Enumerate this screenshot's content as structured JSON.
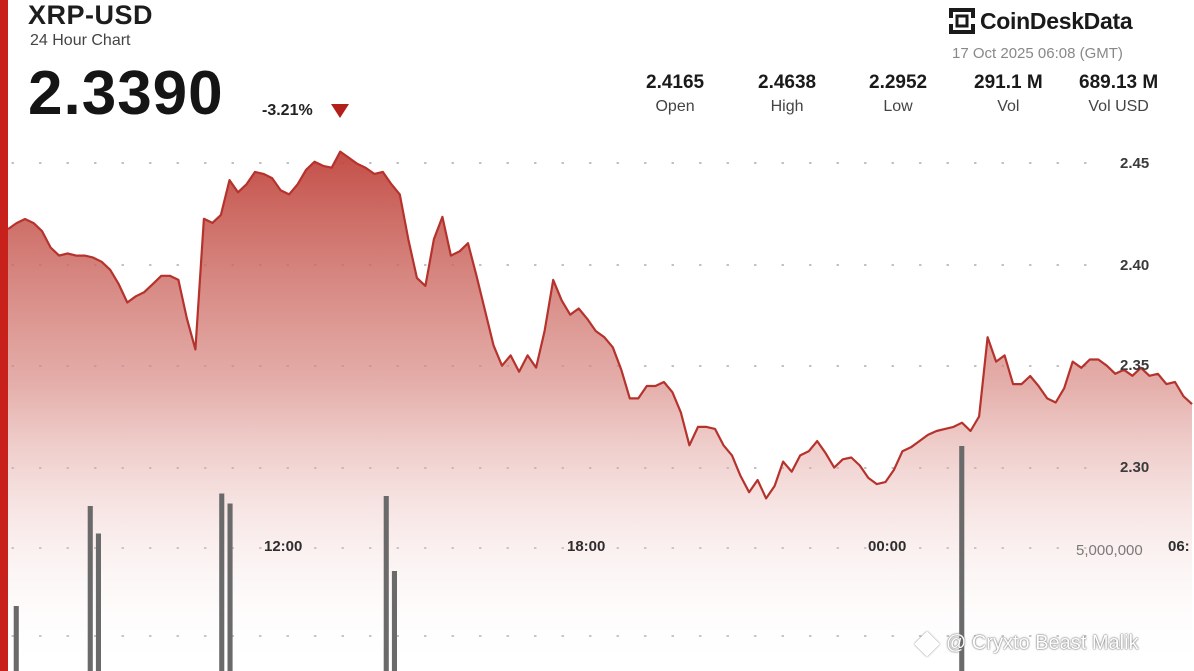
{
  "header": {
    "title": "XRP-USD",
    "subtitle": "24 Hour Chart",
    "price": "2.3390",
    "change": "-3.21%",
    "change_color": "#b3201b"
  },
  "brand": {
    "name": "CoinDeskData",
    "icon": "coindesk-logo-icon",
    "timestamp": "17 Oct 2025 06:08 (GMT)"
  },
  "stats": [
    {
      "value": "2.4165",
      "label": "Open"
    },
    {
      "value": "2.4638",
      "label": "High"
    },
    {
      "value": "2.2952",
      "label": "Low"
    },
    {
      "value": "291.1 M",
      "label": "Vol"
    },
    {
      "value": "689.13 M",
      "label": "Vol USD"
    }
  ],
  "watermark": "@ Cryxto Beast Malik",
  "chart_data": {
    "type": "area",
    "title": "XRP-USD",
    "xlabel": "",
    "ylabel": "",
    "ylim": [
      2.2795,
      2.4779
    ],
    "y_ticks": [
      {
        "value": 2.45,
        "label": "2.45"
      },
      {
        "value": 2.4,
        "label": "2.40"
      },
      {
        "value": 2.35,
        "label": "2.35"
      },
      {
        "value": 2.3,
        "label": "2.30"
      }
    ],
    "x_ticks": [
      "12:00",
      "18:00",
      "00:00",
      "06:"
    ],
    "grid": true,
    "line_color": "#c0392b",
    "fill_color": "#c9504a",
    "price_series": [
      2.4251,
      2.428,
      2.43,
      2.428,
      2.4241,
      2.4162,
      2.4123,
      2.4133,
      2.4123,
      2.4123,
      2.4113,
      2.4093,
      2.4054,
      2.3985,
      2.3896,
      2.3926,
      2.3946,
      2.3985,
      2.4025,
      2.4025,
      2.4005,
      2.3818,
      2.3669,
      2.4301,
      2.4281,
      2.432,
      2.4488,
      2.4429,
      2.4468,
      2.4528,
      2.4518,
      2.4498,
      2.4439,
      2.4419,
      2.4468,
      2.4538,
      2.4577,
      2.4557,
      2.4548,
      2.4626,
      2.4597,
      2.4567,
      2.4547,
      2.4518,
      2.4528,
      2.4469,
      2.4419,
      2.4202,
      2.4015,
      2.3976,
      2.4202,
      2.431,
      2.4123,
      2.4143,
      2.4183,
      2.4025,
      2.3857,
      2.3689,
      2.359,
      2.364,
      2.3561,
      2.364,
      2.3581,
      2.3758,
      2.4005,
      2.3906,
      2.3837,
      2.3867,
      2.3817,
      2.3758,
      2.3728,
      2.3679,
      2.357,
      2.3432,
      2.3432,
      2.3492,
      2.3492,
      2.3511,
      2.3462,
      2.3363,
      2.3205,
      2.3294,
      2.3294,
      2.3284,
      2.3205,
      2.3156,
      2.3057,
      2.2978,
      2.3037,
      2.2948,
      2.3008,
      2.3126,
      2.3077,
      2.3156,
      2.3176,
      2.3225,
      2.3166,
      2.3097,
      2.3137,
      2.3146,
      2.3107,
      2.3047,
      2.3017,
      2.3027,
      2.3086,
      2.3176,
      2.3195,
      2.3225,
      2.3255,
      2.3274,
      2.3284,
      2.3294,
      2.3314,
      2.3274,
      2.3344,
      2.3728,
      2.361,
      2.364,
      2.3501,
      2.3501,
      2.354,
      2.3491,
      2.3432,
      2.3412,
      2.3481,
      2.361,
      2.358,
      2.362,
      2.362,
      2.359,
      2.3551,
      2.357,
      2.3541,
      2.358,
      2.3541,
      2.3551,
      2.3501,
      2.3511,
      2.3442,
      2.3404
    ],
    "volume_series": [
      0,
      2600000,
      0,
      0,
      0,
      0,
      0,
      0,
      0,
      0,
      6600000,
      5500000,
      0,
      0,
      0,
      0,
      0,
      0,
      0,
      0,
      0,
      0,
      0,
      0,
      0,
      0,
      7100000,
      6700000,
      0,
      0,
      0,
      0,
      0,
      0,
      0,
      0,
      0,
      0,
      0,
      0,
      0,
      0,
      0,
      0,
      0,
      0,
      7000000,
      4000000,
      0,
      0,
      0,
      0,
      0,
      0,
      0,
      0,
      0,
      0,
      0,
      0,
      0,
      0,
      0,
      0,
      0,
      0,
      0,
      0,
      0,
      0,
      0,
      0,
      0,
      0,
      0,
      0,
      0,
      0,
      0,
      0,
      0,
      0,
      0,
      0,
      0,
      0,
      0,
      0,
      0,
      0,
      0,
      0,
      0,
      0,
      0,
      0,
      0,
      0,
      0,
      0,
      0,
      0,
      0,
      0,
      0,
      0,
      0,
      0,
      0,
      0,
      0,
      0,
      0,
      0,
      0,
      0,
      9000000,
      0,
      0,
      0,
      0,
      0,
      0,
      0,
      0,
      0,
      0,
      0,
      0,
      0,
      0,
      0,
      0,
      0,
      0,
      0,
      0,
      0,
      0,
      0,
      0,
      0,
      0,
      0,
      0
    ],
    "volume_ticks": [
      {
        "value": 5000000,
        "label": "5,000,000"
      }
    ],
    "volume_color": "#6a6a6a"
  }
}
